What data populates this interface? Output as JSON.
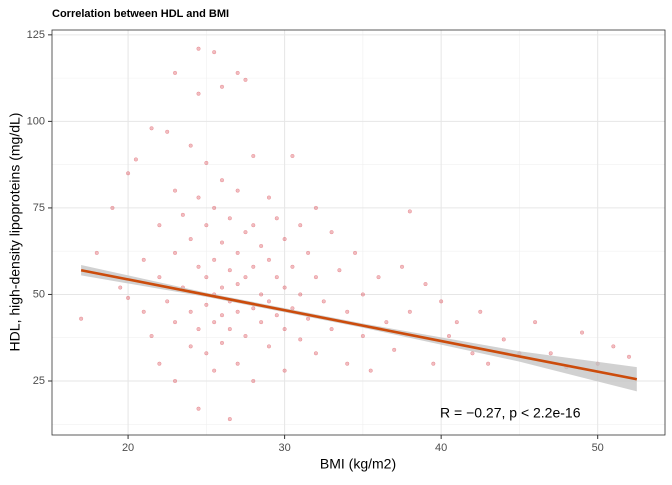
{
  "chart_data": {
    "type": "scatter",
    "title": "Correlation between HDL and BMI",
    "x_label": "BMI (kg/m2)",
    "y_label": "HDL, high-density lipoproteins (mg/dL)",
    "annotation": "R = −0.27, p < 2.2e-16",
    "xlim": [
      15.14,
      54.3
    ],
    "ylim": [
      9.4,
      126.4
    ],
    "xticks": [
      20,
      30,
      40,
      50
    ],
    "yticks": [
      25,
      50,
      75,
      100,
      125
    ],
    "grid": true,
    "points": {
      "color": "#d6404a",
      "x": [
        17,
        18,
        19,
        19.5,
        20,
        20,
        20.5,
        21,
        21,
        21.5,
        21.5,
        22,
        22,
        22,
        22.5,
        22.5,
        23,
        23,
        23,
        23,
        23,
        23.5,
        23.5,
        24,
        24,
        24,
        24,
        24.5,
        24.5,
        24.5,
        24.5,
        24.5,
        24.5,
        25,
        25,
        25,
        25,
        25,
        25.5,
        25.5,
        25.5,
        25.5,
        25.5,
        25.5,
        26,
        26,
        26,
        26,
        26,
        26,
        26.5,
        26.5,
        26.5,
        26.5,
        26.5,
        27,
        27,
        27,
        27,
        27,
        27,
        27.5,
        27.5,
        27.5,
        27.5,
        28,
        28,
        28,
        28,
        28,
        28.5,
        28.5,
        28.5,
        29,
        29,
        29,
        29,
        29.5,
        29.5,
        29.5,
        30,
        30,
        30,
        30,
        30.5,
        30.5,
        30.5,
        31,
        31,
        31,
        31.5,
        31.5,
        32,
        32,
        32,
        32.5,
        33,
        33,
        33.5,
        34,
        34,
        34.5,
        35,
        35,
        35.5,
        36,
        36.5,
        37,
        37.5,
        38,
        38,
        39,
        39.5,
        40,
        40.5,
        41,
        42,
        42.5,
        43,
        44,
        45,
        46,
        47,
        48,
        49,
        50,
        51,
        52
      ],
      "values": [
        43,
        62,
        75,
        52,
        85,
        49,
        89,
        60,
        45,
        98,
        38,
        70,
        55,
        30,
        97,
        48,
        114,
        80,
        62,
        42,
        25,
        73,
        52,
        93,
        66,
        45,
        35,
        121,
        108,
        78,
        58,
        40,
        17,
        88,
        70,
        55,
        47,
        33,
        120,
        75,
        60,
        50,
        42,
        28,
        110,
        83,
        65,
        52,
        44,
        36,
        14,
        72,
        57,
        48,
        40,
        114,
        80,
        62,
        53,
        45,
        30,
        112,
        68,
        55,
        38,
        90,
        70,
        58,
        46,
        25,
        64,
        50,
        42,
        78,
        60,
        48,
        35,
        72,
        55,
        44,
        66,
        52,
        40,
        28,
        90,
        58,
        46,
        70,
        50,
        37,
        62,
        43,
        75,
        55,
        33,
        48,
        68,
        40,
        57,
        45,
        30,
        62,
        50,
        38,
        28,
        55,
        42,
        34,
        58,
        74,
        45,
        53,
        30,
        48,
        38,
        42,
        33,
        45,
        30,
        37,
        33,
        42,
        33,
        29,
        39,
        30,
        35,
        32
      ]
    },
    "fit": {
      "color": "#cc4c0c",
      "band_color": "#c2c2c2",
      "x": [
        17,
        25,
        35,
        45,
        52.5
      ],
      "values": [
        57,
        49.9,
        41.0,
        32.1,
        25.5
      ],
      "lower": [
        55.5,
        49.3,
        40.4,
        30.6,
        22
      ],
      "upper": [
        58.5,
        50.5,
        41.6,
        33.6,
        29
      ]
    }
  }
}
